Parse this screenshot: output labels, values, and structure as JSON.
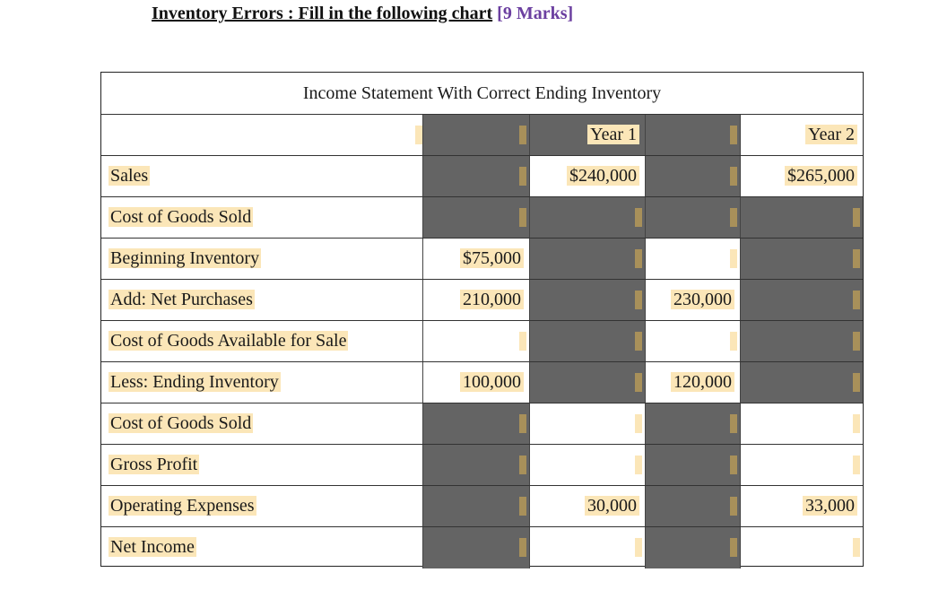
{
  "heading": {
    "main": "Inventory Errors : Fill in the following chart",
    "marks": "[9 Marks]"
  },
  "table_title": "Income Statement With Correct Ending Inventory",
  "columns": {
    "year1": "Year 1",
    "year2": "Year 2"
  },
  "rows": [
    {
      "label": "Sales",
      "y1_inner": "",
      "y1": "$240,000",
      "y2_inner": "",
      "y2": "$265,000"
    },
    {
      "label": "Cost of Goods Sold",
      "y1_inner": "",
      "y1": "",
      "y2_inner": "",
      "y2": ""
    },
    {
      "label": "Beginning Inventory",
      "y1_inner": "$75,000",
      "y1": "",
      "y2_inner": "",
      "y2": ""
    },
    {
      "label": "Add: Net Purchases",
      "y1_inner": "210,000",
      "y1": "",
      "y2_inner": "230,000",
      "y2": ""
    },
    {
      "label": "Cost of Goods Available for Sale",
      "y1_inner": "",
      "y1": "",
      "y2_inner": "",
      "y2": ""
    },
    {
      "label": "Less: Ending Inventory",
      "y1_inner": "100,000",
      "y1": "",
      "y2_inner": "120,000",
      "y2": ""
    },
    {
      "label": "Cost of Goods Sold",
      "y1_inner": "",
      "y1": "",
      "y2_inner": "",
      "y2": ""
    },
    {
      "label": "Gross Profit",
      "y1_inner": "",
      "y1": "",
      "y2_inner": "",
      "y2": ""
    },
    {
      "label": "Operating Expenses",
      "y1_inner": "",
      "y1": "30,000",
      "y2_inner": "",
      "y2": "33,000"
    },
    {
      "label": "Net Income",
      "y1_inner": "",
      "y1": "",
      "y2_inner": "",
      "y2": ""
    }
  ],
  "colors": {
    "cell_highlight": "#fbe6b8",
    "shaded_cell": "#646464",
    "marks_text": "#6b3fa0"
  }
}
